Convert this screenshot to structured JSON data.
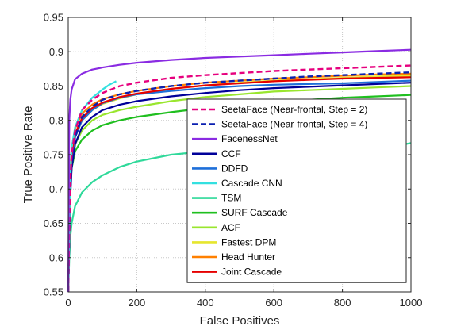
{
  "chart_data": {
    "type": "line",
    "title": "",
    "xlabel": "False Positives",
    "ylabel": "True Positive Rate",
    "xlim": [
      0,
      1000
    ],
    "ylim": [
      0.55,
      0.95
    ],
    "xticks": [
      0,
      200,
      400,
      600,
      800,
      1000
    ],
    "yticks": [
      0.55,
      0.6,
      0.65,
      0.7,
      0.75,
      0.8,
      0.85,
      0.9,
      0.95
    ],
    "xtick_labels": [
      "0",
      "200",
      "400",
      "600",
      "800",
      "1000"
    ],
    "ytick_labels": [
      "0.55",
      "0.6",
      "0.65",
      "0.7",
      "0.75",
      "0.8",
      "0.85",
      "0.9",
      "0.95"
    ],
    "grid": true,
    "legend_position": "bottom-right",
    "series": [
      {
        "name": "SeetaFace (Near-frontal, Step = 2)",
        "color": "#e6007e",
        "style": "dashed",
        "x": [
          0,
          5,
          10,
          20,
          40,
          70,
          100,
          150,
          200,
          300,
          400,
          500,
          600,
          700,
          800,
          900,
          1000
        ],
        "y": [
          0.55,
          0.7,
          0.75,
          0.785,
          0.815,
          0.83,
          0.84,
          0.85,
          0.855,
          0.862,
          0.866,
          0.869,
          0.872,
          0.874,
          0.876,
          0.878,
          0.88
        ]
      },
      {
        "name": "SeetaFace (Near-frontal, Step = 4)",
        "color": "#0a1fb0",
        "style": "dashed",
        "x": [
          0,
          5,
          10,
          20,
          40,
          70,
          100,
          150,
          200,
          300,
          400,
          500,
          600,
          700,
          800,
          900,
          1000
        ],
        "y": [
          0.55,
          0.69,
          0.74,
          0.775,
          0.805,
          0.82,
          0.83,
          0.838,
          0.843,
          0.85,
          0.855,
          0.858,
          0.861,
          0.864,
          0.866,
          0.868,
          0.87
        ]
      },
      {
        "name": "FacenessNet",
        "color": "#8a2be2",
        "style": "solid",
        "x": [
          0,
          3,
          6,
          10,
          20,
          40,
          70,
          100,
          150,
          200,
          300,
          400,
          500,
          600,
          700,
          800,
          900,
          1000
        ],
        "y": [
          0.55,
          0.8,
          0.83,
          0.845,
          0.86,
          0.868,
          0.874,
          0.877,
          0.881,
          0.884,
          0.888,
          0.891,
          0.893,
          0.895,
          0.897,
          0.899,
          0.901,
          0.903
        ]
      },
      {
        "name": "CCF",
        "color": "#000099",
        "style": "solid",
        "x": [
          0,
          5,
          10,
          20,
          40,
          70,
          100,
          150,
          200,
          300,
          400,
          500,
          600,
          700,
          800,
          900,
          1000
        ],
        "y": [
          0.55,
          0.68,
          0.73,
          0.765,
          0.79,
          0.805,
          0.815,
          0.823,
          0.828,
          0.835,
          0.84,
          0.844,
          0.847,
          0.849,
          0.851,
          0.853,
          0.855
        ]
      },
      {
        "name": "DDFD",
        "color": "#1e6fd9",
        "style": "solid",
        "x": [
          0,
          5,
          10,
          20,
          40,
          70,
          100,
          150,
          200,
          300,
          400,
          500,
          600,
          700,
          800,
          900,
          1000
        ],
        "y": [
          0.55,
          0.7,
          0.745,
          0.775,
          0.8,
          0.815,
          0.825,
          0.833,
          0.838,
          0.843,
          0.847,
          0.85,
          0.852,
          0.853,
          0.854,
          0.856,
          0.858
        ]
      },
      {
        "name": "Cascade CNN",
        "color": "#33e0e0",
        "style": "solid",
        "x": [
          0,
          5,
          10,
          20,
          40,
          70,
          100,
          120,
          140
        ],
        "y": [
          0.55,
          0.71,
          0.76,
          0.79,
          0.815,
          0.833,
          0.845,
          0.852,
          0.857
        ]
      },
      {
        "name": "TSM",
        "color": "#2fd99a",
        "style": "solid",
        "x": [
          0,
          3,
          6,
          10,
          20,
          40,
          70,
          100,
          150,
          200,
          300,
          400,
          500,
          600,
          700,
          800,
          900,
          980,
          1000
        ],
        "y": [
          0.55,
          0.6,
          0.63,
          0.65,
          0.675,
          0.695,
          0.71,
          0.72,
          0.732,
          0.74,
          0.75,
          0.755,
          0.758,
          0.76,
          0.761,
          0.762,
          0.763,
          0.765,
          0.767
        ]
      },
      {
        "name": "SURF Cascade",
        "color": "#1fbf1f",
        "style": "solid",
        "x": [
          0,
          5,
          10,
          20,
          40,
          70,
          100,
          150,
          200,
          300,
          400,
          500,
          600,
          700,
          800,
          900,
          1000
        ],
        "y": [
          0.55,
          0.69,
          0.73,
          0.755,
          0.772,
          0.785,
          0.793,
          0.8,
          0.805,
          0.812,
          0.818,
          0.823,
          0.827,
          0.83,
          0.833,
          0.835,
          0.837
        ]
      },
      {
        "name": "ACF",
        "color": "#99e62e",
        "style": "solid",
        "x": [
          0,
          5,
          10,
          20,
          40,
          70,
          100,
          150,
          200,
          300,
          400,
          500,
          600,
          700,
          800,
          900,
          1000
        ],
        "y": [
          0.55,
          0.69,
          0.735,
          0.765,
          0.785,
          0.8,
          0.808,
          0.815,
          0.82,
          0.828,
          0.834,
          0.838,
          0.842,
          0.844,
          0.846,
          0.848,
          0.85
        ]
      },
      {
        "name": "Fastest DPM",
        "color": "#e6e62e",
        "style": "solid",
        "x": [
          0,
          5,
          10,
          20,
          40,
          70,
          100,
          150,
          200,
          300,
          400,
          500,
          600,
          700,
          800,
          900,
          1000
        ],
        "y": [
          0.55,
          0.7,
          0.745,
          0.775,
          0.8,
          0.815,
          0.824,
          0.832,
          0.838,
          0.846,
          0.851,
          0.855,
          0.858,
          0.86,
          0.862,
          0.864,
          0.865
        ]
      },
      {
        "name": "Head Hunter",
        "color": "#ff8000",
        "style": "solid",
        "x": [
          0,
          5,
          10,
          20,
          40,
          70,
          100,
          150,
          200,
          300,
          400,
          500,
          600,
          700,
          800,
          900,
          1000
        ],
        "y": [
          0.55,
          0.72,
          0.76,
          0.788,
          0.81,
          0.823,
          0.831,
          0.838,
          0.843,
          0.85,
          0.855,
          0.858,
          0.861,
          0.863,
          0.865,
          0.867,
          0.868
        ]
      },
      {
        "name": "Joint Cascade",
        "color": "#e60000",
        "style": "solid",
        "x": [
          0,
          5,
          10,
          20,
          40,
          70,
          100,
          150,
          200,
          300,
          400,
          500,
          600,
          700,
          800,
          900,
          1000
        ],
        "y": [
          0.55,
          0.71,
          0.75,
          0.78,
          0.803,
          0.818,
          0.826,
          0.834,
          0.839,
          0.846,
          0.851,
          0.854,
          0.857,
          0.859,
          0.861,
          0.862,
          0.863
        ]
      }
    ]
  }
}
